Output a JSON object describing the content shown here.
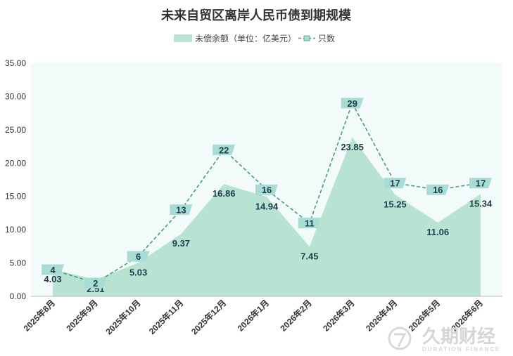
{
  "chart_data": {
    "type": "area",
    "title": "未来自贸区离岸人民币债到期规模",
    "categories": [
      "2025年8月",
      "2025年9月",
      "2025年10月",
      "2025年11月",
      "2025年12月",
      "2026年1月",
      "2026年2月",
      "2026年3月",
      "2026年4月",
      "2026年5月",
      "2026年6月"
    ],
    "series": [
      {
        "name": "未偿余额（单位：亿美元）",
        "type": "area",
        "values": [
          4.03,
          2.51,
          5.03,
          9.37,
          16.86,
          14.94,
          7.45,
          23.85,
          15.25,
          11.06,
          15.34
        ]
      },
      {
        "name": "只数",
        "type": "line",
        "values": [
          4,
          2,
          6,
          13,
          22,
          16,
          11,
          29,
          17,
          16,
          17
        ]
      }
    ],
    "ylim": [
      0,
      35
    ],
    "yticks": [
      "0.00",
      "5.00",
      "10.00",
      "15.00",
      "20.00",
      "25.00",
      "30.00",
      "35.00"
    ],
    "xlabel": "",
    "ylabel": "",
    "legend_position": "top",
    "colors": {
      "area": "#b8e3d3",
      "line": "#4a9d73",
      "marker": "#a8ddd6",
      "plot_bg": "#f3fbfa"
    }
  },
  "watermark": {
    "text": "久期财经",
    "sub": "DURATION FINANCE"
  }
}
